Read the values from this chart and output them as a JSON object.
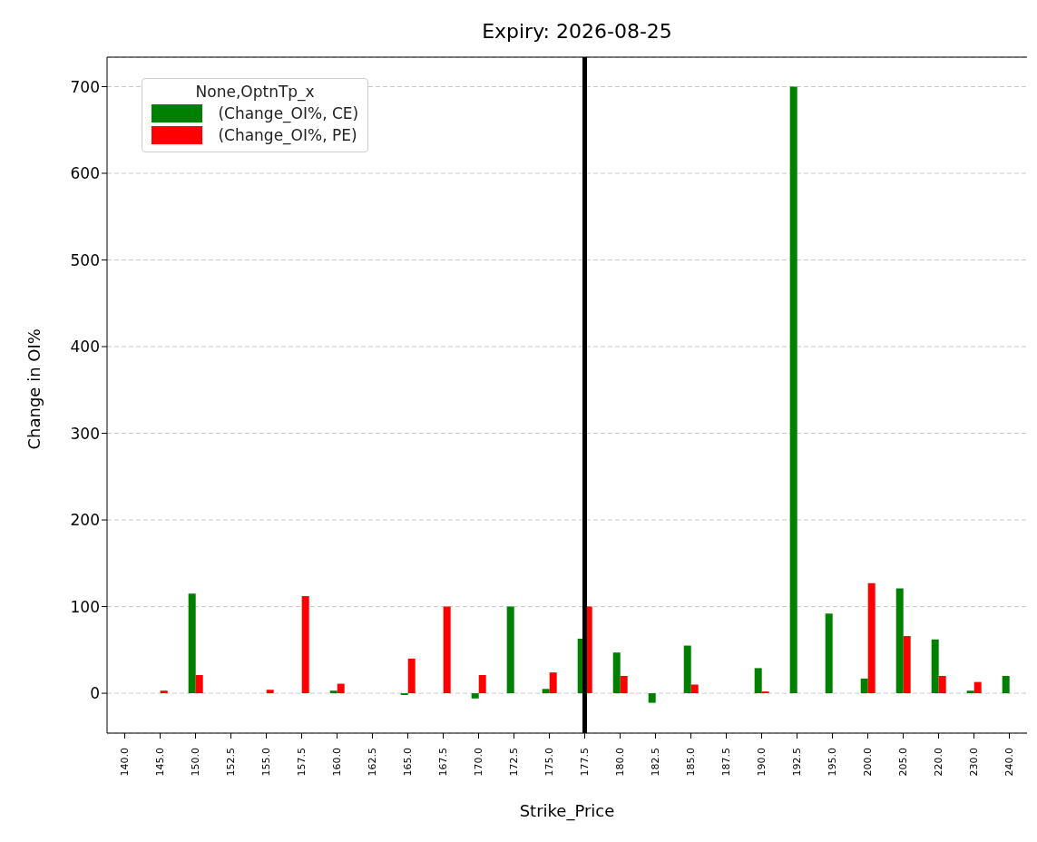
{
  "chart_data": {
    "type": "bar",
    "title": "Expiry: 2026-08-25",
    "xlabel": "Strike_Price",
    "ylabel": "Change in OI%",
    "legend_title": "None,OptnTp_x",
    "categories": [
      "140.0",
      "145.0",
      "150.0",
      "152.5",
      "155.0",
      "157.5",
      "160.0",
      "162.5",
      "165.0",
      "167.5",
      "170.0",
      "172.5",
      "175.0",
      "177.5",
      "180.0",
      "182.5",
      "185.0",
      "187.5",
      "190.0",
      "192.5",
      "195.0",
      "200.0",
      "205.0",
      "220.0",
      "230.0",
      "240.0"
    ],
    "series": [
      {
        "name": " (Change_OI%, CE)",
        "color": "#008000",
        "values": [
          null,
          null,
          115,
          null,
          null,
          null,
          3,
          null,
          -2,
          null,
          -6,
          100,
          5,
          63,
          47,
          -11,
          55,
          null,
          29,
          700,
          92,
          17,
          121,
          62,
          3,
          20
        ]
      },
      {
        "name": " (Change_OI%, PE)",
        "color": "#ff0000",
        "values": [
          null,
          3,
          21,
          null,
          4,
          112,
          11,
          null,
          40,
          100,
          21,
          null,
          24,
          100,
          20,
          null,
          10,
          null,
          2,
          null,
          null,
          127,
          66,
          20,
          13,
          null
        ]
      }
    ],
    "ylim": [
      -46,
      734
    ],
    "yticks": [
      0,
      100,
      200,
      300,
      400,
      500,
      600,
      700
    ],
    "grid": "y",
    "ref_lines": [
      {
        "axis": "x",
        "value": "177.5",
        "color": "#000000"
      }
    ],
    "legend": "top left"
  }
}
